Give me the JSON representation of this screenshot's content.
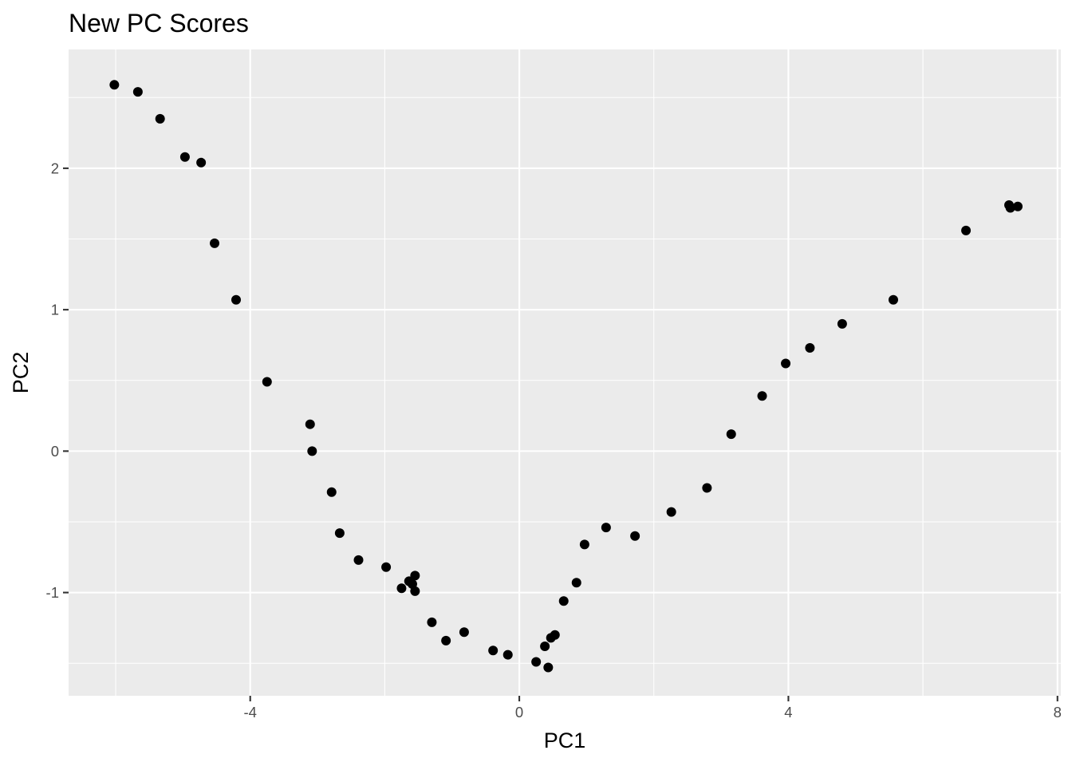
{
  "chart_data": {
    "type": "scatter",
    "title": "New PC Scores",
    "xlabel": "PC1",
    "ylabel": "PC2",
    "xlim": [
      -6.7,
      8.05
    ],
    "ylim": [
      -1.73,
      2.84
    ],
    "x_ticks": [
      -4,
      0,
      4,
      8
    ],
    "x_tick_labels": [
      "-4",
      "0",
      "4",
      "8"
    ],
    "y_ticks": [
      -1,
      0,
      1,
      2
    ],
    "y_tick_labels": [
      "-1",
      "0",
      "1",
      "2"
    ],
    "grid": true,
    "legend": "none",
    "colors": {
      "panel_background": "#EBEBEB",
      "grid": "#FFFFFF",
      "point": "#000000"
    },
    "points": [
      {
        "x": -6.02,
        "y": 2.59
      },
      {
        "x": -5.67,
        "y": 2.54
      },
      {
        "x": -5.34,
        "y": 2.35
      },
      {
        "x": -4.97,
        "y": 2.08
      },
      {
        "x": -4.73,
        "y": 2.04
      },
      {
        "x": -4.53,
        "y": 1.47
      },
      {
        "x": -4.21,
        "y": 1.07
      },
      {
        "x": -3.75,
        "y": 0.49
      },
      {
        "x": -3.11,
        "y": 0.19
      },
      {
        "x": -3.08,
        "y": 0.0
      },
      {
        "x": -2.79,
        "y": -0.29
      },
      {
        "x": -2.67,
        "y": -0.58
      },
      {
        "x": -2.39,
        "y": -0.77
      },
      {
        "x": -1.98,
        "y": -0.82
      },
      {
        "x": -1.75,
        "y": -0.97
      },
      {
        "x": -1.64,
        "y": -0.92
      },
      {
        "x": -1.59,
        "y": -0.94
      },
      {
        "x": -1.55,
        "y": -0.88
      },
      {
        "x": -1.55,
        "y": -0.99
      },
      {
        "x": -1.3,
        "y": -1.21
      },
      {
        "x": -1.09,
        "y": -1.34
      },
      {
        "x": -0.82,
        "y": -1.28
      },
      {
        "x": -0.39,
        "y": -1.41
      },
      {
        "x": -0.17,
        "y": -1.44
      },
      {
        "x": 0.25,
        "y": -1.49
      },
      {
        "x": 0.38,
        "y": -1.38
      },
      {
        "x": 0.43,
        "y": -1.53
      },
      {
        "x": 0.47,
        "y": -1.32
      },
      {
        "x": 0.53,
        "y": -1.3
      },
      {
        "x": 0.66,
        "y": -1.06
      },
      {
        "x": 0.85,
        "y": -0.93
      },
      {
        "x": 0.97,
        "y": -0.66
      },
      {
        "x": 1.29,
        "y": -0.54
      },
      {
        "x": 1.72,
        "y": -0.6
      },
      {
        "x": 2.26,
        "y": -0.43
      },
      {
        "x": 2.79,
        "y": -0.26
      },
      {
        "x": 3.15,
        "y": 0.12
      },
      {
        "x": 3.61,
        "y": 0.39
      },
      {
        "x": 3.96,
        "y": 0.62
      },
      {
        "x": 4.32,
        "y": 0.73
      },
      {
        "x": 4.8,
        "y": 0.9
      },
      {
        "x": 5.56,
        "y": 1.07
      },
      {
        "x": 6.64,
        "y": 1.56
      },
      {
        "x": 7.28,
        "y": 1.74
      },
      {
        "x": 7.3,
        "y": 1.72
      },
      {
        "x": 7.41,
        "y": 1.73
      }
    ]
  }
}
